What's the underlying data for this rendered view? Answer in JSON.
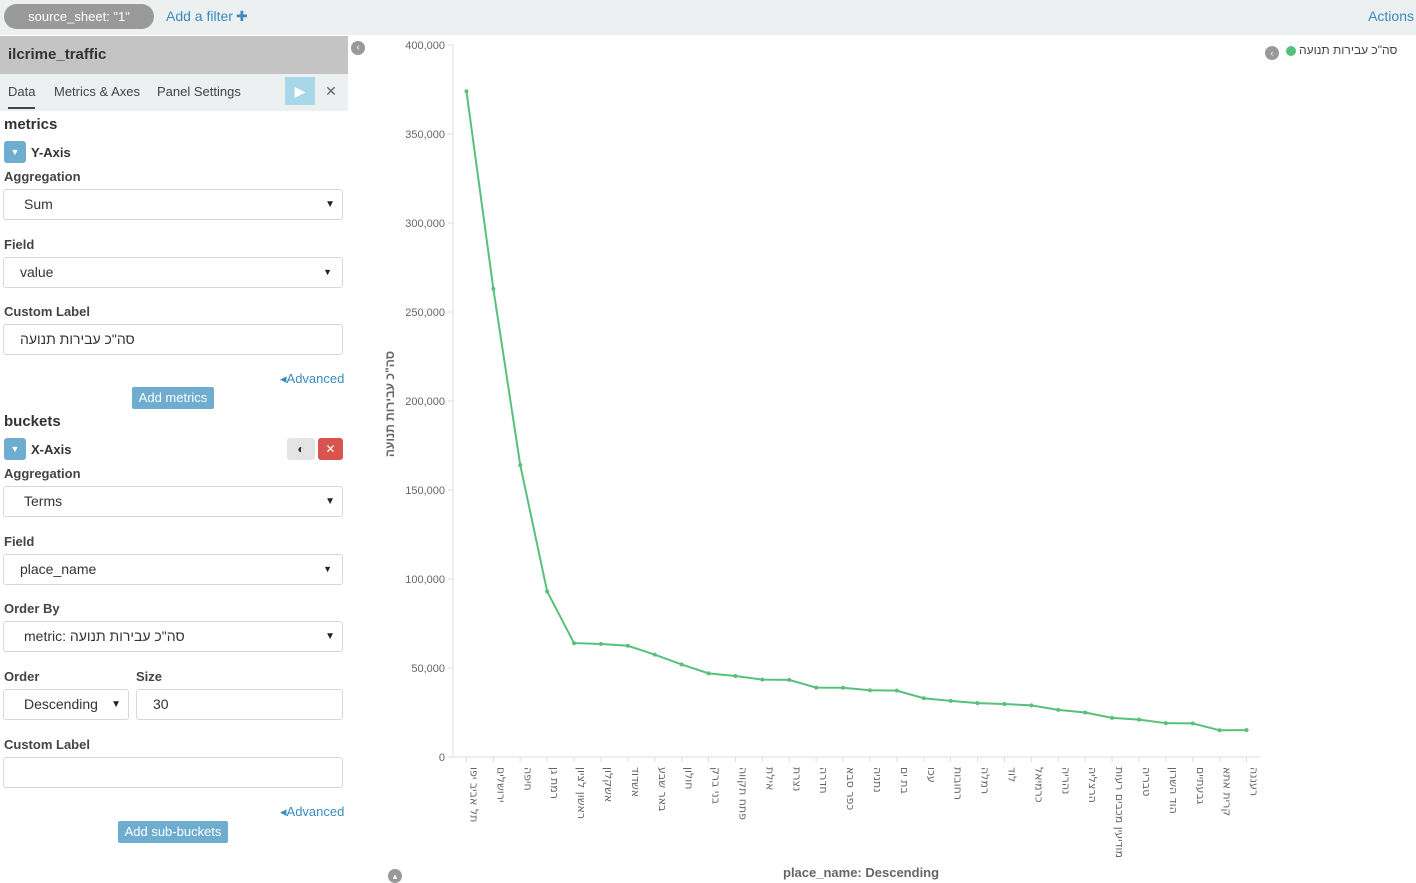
{
  "filter_bar": {
    "pill": "source_sheet: \"1\"",
    "add_filter": "Add a filter",
    "add_filter_icon": "plus-icon",
    "actions": "Actions"
  },
  "sidebar": {
    "index_name": "ilcrime_traffic",
    "tabs": [
      "Data",
      "Metrics & Axes",
      "Panel Settings"
    ],
    "active_tab": "Data",
    "metrics": {
      "title": "metrics",
      "agg_name": "Y-Axis",
      "aggregation_label": "Aggregation",
      "aggregation_value": "Sum",
      "field_label": "Field",
      "field_value": "value",
      "custom_label_label": "Custom Label",
      "custom_label_value": "סה\"כ עבירות תנועה",
      "advanced": "Advanced",
      "add_button": "Add metrics"
    },
    "buckets": {
      "title": "buckets",
      "agg_name": "X-Axis",
      "aggregation_label": "Aggregation",
      "aggregation_value": "Terms",
      "field_label": "Field",
      "field_value": "place_name",
      "order_by_label": "Order By",
      "order_by_value": "metric: סה\"כ עבירות תנועה",
      "order_label": "Order",
      "order_value": "Descending",
      "size_label": "Size",
      "size_value": "30",
      "custom_label_label": "Custom Label",
      "custom_label_value": "",
      "advanced": "Advanced",
      "add_button": "Add sub-buckets"
    }
  },
  "colors": {
    "series": "#57c17b",
    "accent": "#6eadd0",
    "danger": "#d9534f"
  },
  "chart_data": {
    "type": "line",
    "ylabel": "סה\"כ עבירות תנועה",
    "xlabel": "place_name: Descending",
    "ylim": [
      0,
      400000
    ],
    "yticks": [
      0,
      50000,
      100000,
      150000,
      200000,
      250000,
      300000,
      350000,
      400000
    ],
    "ytick_labels": [
      "0",
      "50,000",
      "100,000",
      "150,000",
      "200,000",
      "250,000",
      "300,000",
      "350,000",
      "400,000"
    ],
    "legend_position": "top-right",
    "categories": [
      "תל אביב יפו",
      "ירושלים",
      "חיפה",
      "רמת גן",
      "ראשון לציון",
      "אשקלון",
      "אשדוד",
      "באר שבע",
      "חולון",
      "בני ברק",
      "פתח תקווה",
      "אילת",
      "נצרת",
      "חדרה",
      "כפר סבא",
      "נתניה",
      "בת ים",
      "עכו",
      "רחובות",
      "רמלה",
      "לוד",
      "כרמיאל",
      "נהריה",
      "הרצליה",
      "מודיעין מכבים רעות",
      "טבריה",
      "הוד השרון",
      "גבעתיים",
      "קרית אתא",
      "רעננה"
    ],
    "series": [
      {
        "name": "סה\"כ עבירות תנועה",
        "values": [
          374000,
          263000,
          164000,
          93000,
          64000,
          63500,
          62500,
          57500,
          52000,
          47000,
          45500,
          43500,
          43300,
          39000,
          38900,
          37500,
          37300,
          33000,
          31500,
          30300,
          29800,
          29000,
          26500,
          25000,
          22000,
          21000,
          19000,
          18900,
          15000,
          15100
        ]
      }
    ]
  },
  "icons": {
    "collapse_sidebar": "chevron-left-icon",
    "collapse_bottom": "chevron-up-icon",
    "legend_toggle": "chevron-left-icon",
    "run": "play-icon",
    "discard": "close-icon",
    "agg_toggle": "caret-down-icon",
    "bucket_toggle": "toggle-icon",
    "bucket_remove": "close-icon"
  }
}
